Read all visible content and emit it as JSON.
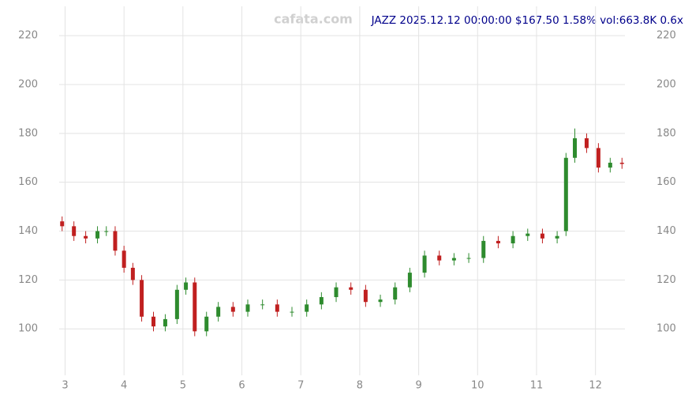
{
  "chart_data": {
    "type": "candlestick",
    "title": "JAZZ 2025.12.12 00:00:00 $167.50 1.58% vol:663.8K 0.6x",
    "watermark": "cafata.com",
    "x": [
      2.95,
      3.15,
      3.35,
      3.55,
      3.7,
      3.85,
      4.0,
      4.15,
      4.3,
      4.5,
      4.7,
      4.9,
      5.05,
      5.2,
      5.4,
      5.6,
      5.85,
      6.1,
      6.35,
      6.6,
      6.85,
      7.1,
      7.35,
      7.6,
      7.85,
      8.1,
      8.35,
      8.6,
      8.85,
      9.1,
      9.35,
      9.6,
      9.85,
      10.1,
      10.35,
      10.6,
      10.85,
      11.1,
      11.35,
      11.5,
      11.65,
      11.85,
      12.05,
      12.25,
      12.45
    ],
    "open": [
      144,
      142,
      138,
      137,
      140,
      140,
      132,
      125,
      120,
      105,
      101,
      104,
      116,
      119,
      99,
      105,
      109,
      107,
      110,
      110,
      107,
      107,
      110,
      113,
      117,
      116,
      111,
      112,
      117,
      123,
      130,
      128,
      129,
      129,
      136,
      135,
      138,
      139,
      137,
      140,
      170,
      178,
      174,
      166,
      168
    ],
    "high": [
      146,
      144,
      140,
      142,
      142,
      142,
      134,
      127,
      122,
      107,
      106,
      118,
      121,
      121,
      107,
      111,
      111,
      112,
      112,
      112,
      109,
      112,
      115,
      119,
      119,
      118,
      114,
      119,
      125,
      132,
      132,
      131,
      131,
      138,
      138,
      140,
      141,
      141,
      140,
      172,
      182,
      180,
      176,
      170,
      170
    ],
    "low": [
      140,
      136,
      135,
      135,
      138,
      130,
      123,
      118,
      103,
      99,
      99,
      102,
      114,
      97,
      97,
      103,
      105,
      105,
      108,
      105,
      105,
      105,
      108,
      111,
      114,
      109,
      109,
      110,
      115,
      121,
      126,
      126,
      127,
      127,
      133,
      133,
      136,
      135,
      135,
      138,
      168,
      172,
      164,
      164,
      165.5
    ],
    "close": [
      142,
      138,
      137,
      140,
      140,
      132,
      125,
      120,
      105,
      101,
      104,
      116,
      119,
      99,
      105,
      109,
      107,
      110,
      110,
      107,
      107,
      110,
      113,
      117,
      116,
      111,
      112,
      117,
      123,
      130,
      128,
      129,
      129,
      136,
      135,
      138,
      139,
      137,
      138,
      170,
      178,
      174,
      166,
      168,
      167.5
    ],
    "up_color": "#2e8b2e",
    "down_color": "#c02020",
    "xlim": [
      2.9,
      12.5
    ],
    "xticks": [
      3,
      4,
      5,
      6,
      7,
      8,
      9,
      10,
      11,
      12
    ],
    "ylim": [
      81,
      232
    ],
    "yticks": [
      100,
      120,
      140,
      160,
      180,
      200,
      220
    ],
    "grid": true
  }
}
